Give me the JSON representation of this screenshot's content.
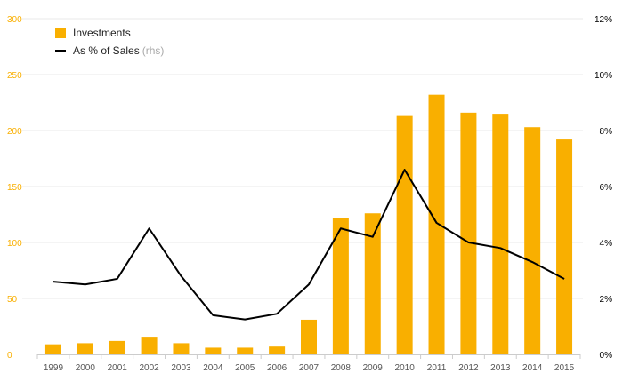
{
  "chart_data": {
    "type": "bar",
    "categories": [
      "1999",
      "2000",
      "2001",
      "2002",
      "2003",
      "2004",
      "2005",
      "2006",
      "2007",
      "2008",
      "2009",
      "2010",
      "2011",
      "2012",
      "2013",
      "2014",
      "2015"
    ],
    "series": [
      {
        "name": "Investments",
        "kind": "bar",
        "axis": "left",
        "color": "#F9AF00",
        "values": [
          9,
          10,
          12,
          15,
          10,
          6,
          6,
          7,
          31,
          122,
          126,
          213,
          232,
          216,
          215,
          203,
          192
        ]
      },
      {
        "name": "As % of Sales",
        "name_note": "(rhs)",
        "kind": "line",
        "axis": "right",
        "color": "#000000",
        "values": [
          2.6,
          2.5,
          2.7,
          4.5,
          2.8,
          1.4,
          1.25,
          1.45,
          2.5,
          4.5,
          4.2,
          6.6,
          4.7,
          4.0,
          3.8,
          3.3,
          2.7
        ]
      }
    ],
    "yleft": {
      "lim": [
        0,
        300
      ],
      "ticks": [
        0,
        50,
        100,
        150,
        200,
        250,
        300
      ],
      "labels": [
        "0",
        "50",
        "100",
        "150",
        "200",
        "250",
        "300"
      ],
      "color": "#F9AF00"
    },
    "yright": {
      "lim": [
        0,
        12
      ],
      "ticks": [
        0,
        2,
        4,
        6,
        8,
        10,
        12
      ],
      "labels": [
        "0%",
        "2%",
        "4%",
        "6%",
        "8%",
        "10%",
        "12%"
      ],
      "color": "#000000"
    },
    "grid": true,
    "grid_color": "#e8e8e8",
    "legend_position": "top-left"
  }
}
